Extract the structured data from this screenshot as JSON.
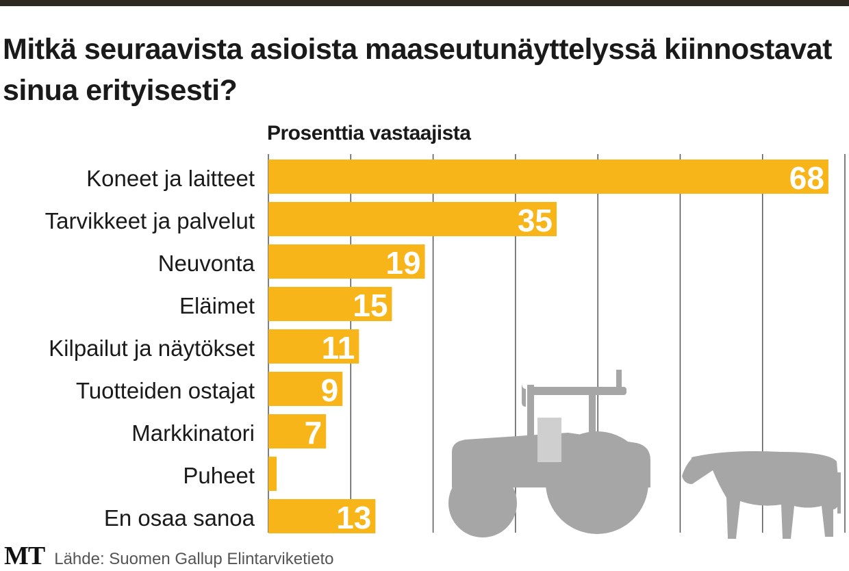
{
  "chart_data": {
    "type": "bar",
    "orientation": "horizontal",
    "title": "Mitkä seuraavista asioista maaseutunäyttelyssä kiinnostavat sinua erityisesti?",
    "subtitle": "Prosenttia vastaajista",
    "categories": [
      "Koneet ja laitteet",
      "Tarvikkeet ja palvelut",
      "Neuvonta",
      "Eläimet",
      "Kilpailut ja näytökset",
      "Tuotteiden ostajat",
      "Markkinatori",
      "Puheet",
      "En osaa sanoa"
    ],
    "values": [
      68,
      35,
      19,
      15,
      11,
      9,
      7,
      1,
      13
    ],
    "xlim": [
      0,
      70
    ],
    "grid_step": 10,
    "grid": true,
    "bar_color": "#f7b519"
  },
  "footer": {
    "logo": "MT",
    "source": "Lähde: Suomen Gallup Elintarviketieto"
  },
  "colors": {
    "topbar": "#2e2822",
    "silhouette": "#a6a6a6"
  }
}
